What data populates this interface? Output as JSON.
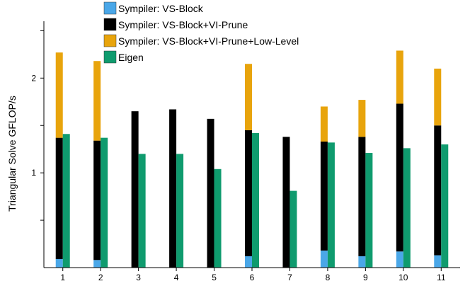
{
  "chart_data": {
    "type": "bar",
    "stacked": true,
    "ylabel": "Triangular Solve GFLOP/s",
    "xlabel": "",
    "ylim": [
      0,
      2.6
    ],
    "yticks": [
      0.5,
      1,
      1.5,
      2,
      2.5
    ],
    "yticklabels": [
      "",
      "1",
      "",
      "2",
      ""
    ],
    "categories": [
      "1",
      "2",
      "3",
      "4",
      "5",
      "6",
      "7",
      "8",
      "9",
      "10",
      "11"
    ],
    "series": [
      {
        "name": "Sympiler: VS-Block",
        "color": "#4aa7e8",
        "stack": "sympiler",
        "values": [
          0.09,
          0.08,
          0,
          0,
          0,
          0.12,
          0,
          0.18,
          0.12,
          0.17,
          0.13
        ]
      },
      {
        "name": "Sympiler: VS-Block+VI-Prune",
        "color": "#000000",
        "stack": "sympiler",
        "values": [
          1.28,
          1.26,
          1.65,
          1.67,
          1.57,
          1.33,
          1.38,
          1.15,
          1.26,
          1.56,
          1.37
        ]
      },
      {
        "name": "Sympiler: VS-Block+VI-Prune+Low-Level",
        "color": "#e8a40c",
        "stack": "sympiler",
        "values": [
          0.9,
          0.84,
          0,
          0,
          0,
          0.7,
          0,
          0.37,
          0.39,
          0.56,
          0.6
        ]
      },
      {
        "name": "Eigen",
        "color": "#0f9b6e",
        "stack": "eigen",
        "values": [
          1.41,
          1.37,
          1.2,
          1.2,
          1.04,
          1.42,
          0.81,
          1.32,
          1.21,
          1.26,
          1.3
        ]
      }
    ],
    "legend": {
      "position": "top"
    }
  }
}
